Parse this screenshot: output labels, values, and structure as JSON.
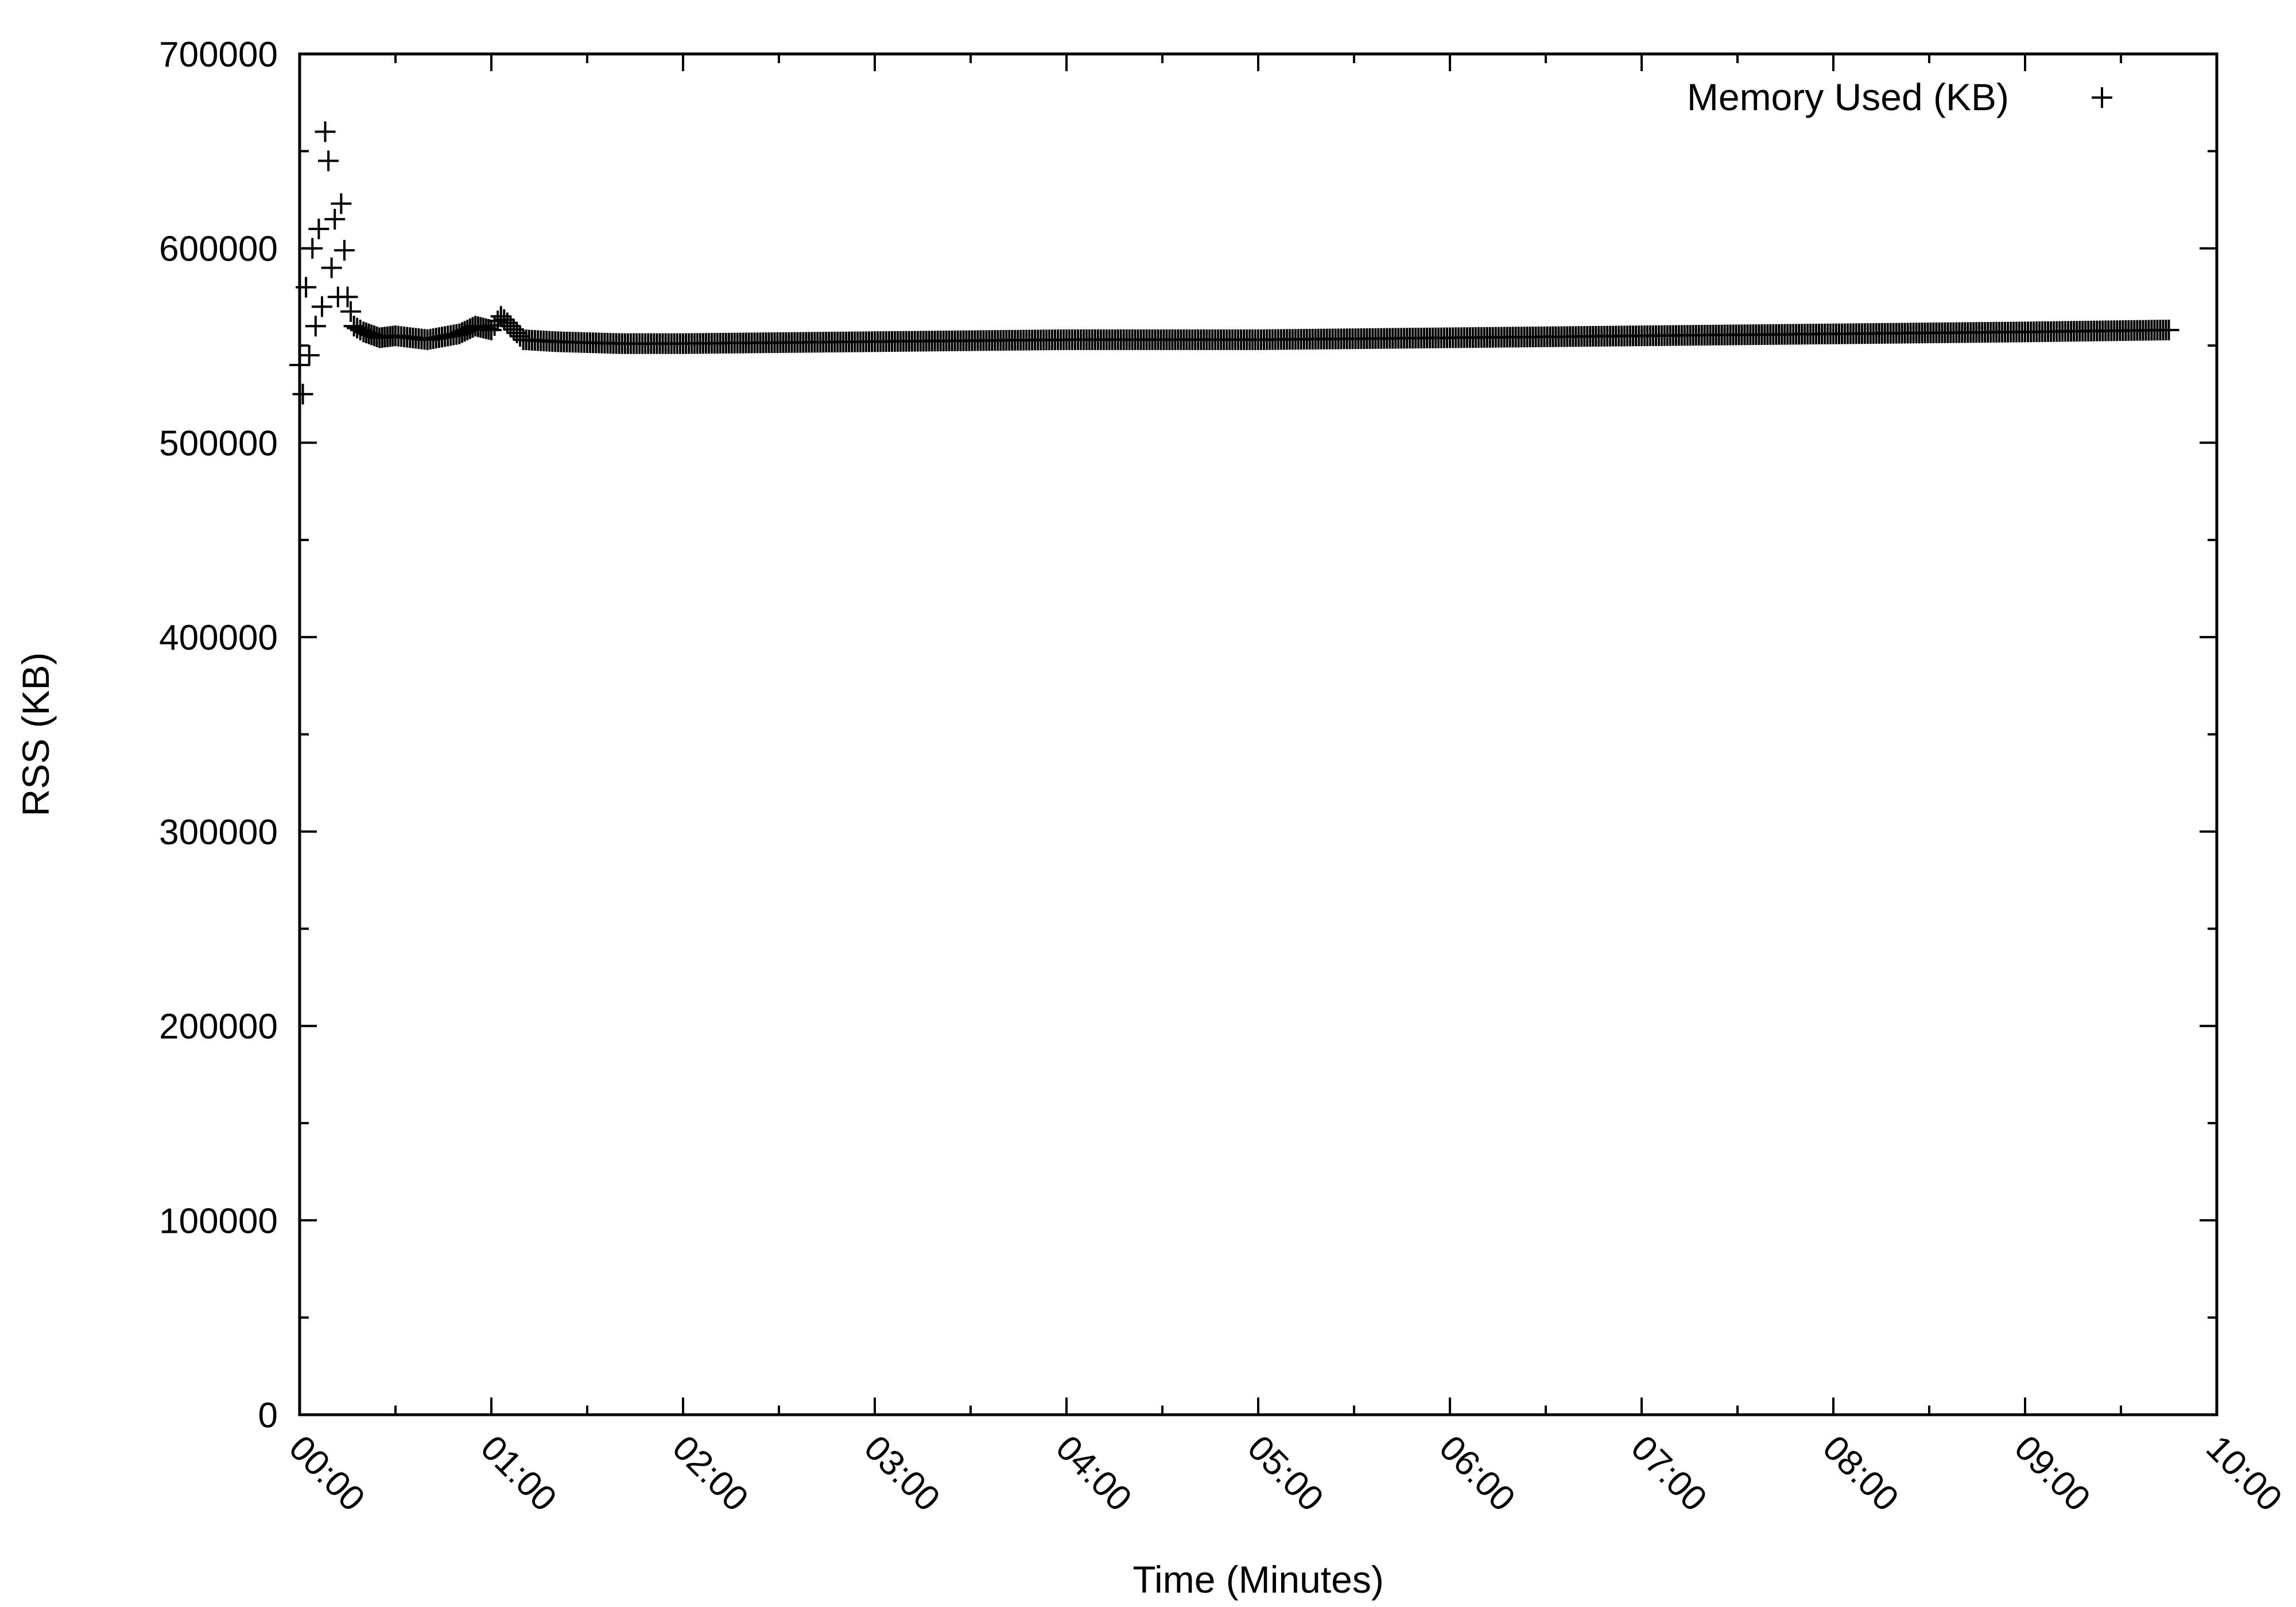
{
  "chart_data": {
    "type": "scatter",
    "title": "",
    "xlabel": "Time (Minutes)",
    "ylabel": "RSS (KB)",
    "xlim": [
      "00:00",
      "10:00"
    ],
    "ylim": [
      0,
      700000
    ],
    "x_ticks": [
      "00:00",
      "01:00",
      "02:00",
      "03:00",
      "04:00",
      "05:00",
      "06:00",
      "07:00",
      "08:00",
      "09:00",
      "10:00"
    ],
    "y_ticks": [
      "0",
      "100000",
      "200000",
      "300000",
      "400000",
      "500000",
      "600000",
      "700000"
    ],
    "grid": false,
    "legend": {
      "position": "top-right",
      "label": "Memory Used (KB)",
      "marker": "+"
    },
    "series": [
      {
        "name": "Memory Used (KB)",
        "marker": "+",
        "color": "#000000",
        "x": [
          "00:00",
          "00:01",
          "00:02",
          "00:03",
          "00:04",
          "00:05",
          "00:06",
          "00:07",
          "00:08",
          "00:09",
          "00:10",
          "00:11",
          "00:12",
          "00:13",
          "00:15",
          "00:17",
          "00:20",
          "00:25",
          "00:30",
          "00:40",
          "00:50",
          "00:55",
          "01:00",
          "01:03",
          "01:06",
          "01:10",
          "01:20",
          "01:40",
          "02:00",
          "03:00",
          "04:00",
          "05:00",
          "06:00",
          "07:00",
          "08:00",
          "09:00",
          "09:45"
        ],
        "y": [
          540000,
          525000,
          580000,
          545000,
          600000,
          560000,
          610000,
          570000,
          660000,
          645000,
          590000,
          615000,
          575000,
          623000,
          575000,
          560000,
          557000,
          554000,
          555000,
          553000,
          556000,
          560000,
          558000,
          565000,
          560000,
          553000,
          552000,
          551000,
          551000,
          552000,
          553000,
          553000,
          554000,
          555000,
          556000,
          557000,
          558000
        ]
      }
    ]
  }
}
